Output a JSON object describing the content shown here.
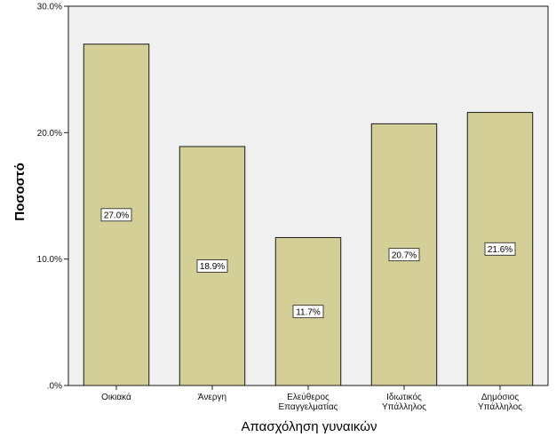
{
  "chart_data": {
    "type": "bar",
    "categories": [
      [
        "Οικιακά"
      ],
      [
        "Άνεργη"
      ],
      [
        "Ελεύθερος",
        "Επαγγελματίας"
      ],
      [
        "Ιδιωτικός",
        "Υπάλληλος"
      ],
      [
        "Δημόσιος",
        "Υπάλληλος"
      ]
    ],
    "values": [
      27.0,
      18.9,
      11.7,
      20.7,
      21.6
    ],
    "data_labels": [
      "27.0%",
      "18.9%",
      "11.7%",
      "20.7%",
      "21.6%"
    ],
    "xlabel": "Απασχόληση γυναικών",
    "ylabel": "Ποσοστό",
    "ylim": [
      0,
      30
    ],
    "y_ticks": [
      0,
      10,
      20,
      30
    ],
    "y_tick_labels": [
      ".0%",
      "10.0%",
      "20.0%",
      "30.0%"
    ],
    "colors": {
      "bar_fill": "#d4cf96",
      "bar_stroke": "#1a1a1a",
      "plot_background": "#f0f0f0",
      "label_box": "#ffffff"
    },
    "grid": false,
    "legend": "none"
  }
}
